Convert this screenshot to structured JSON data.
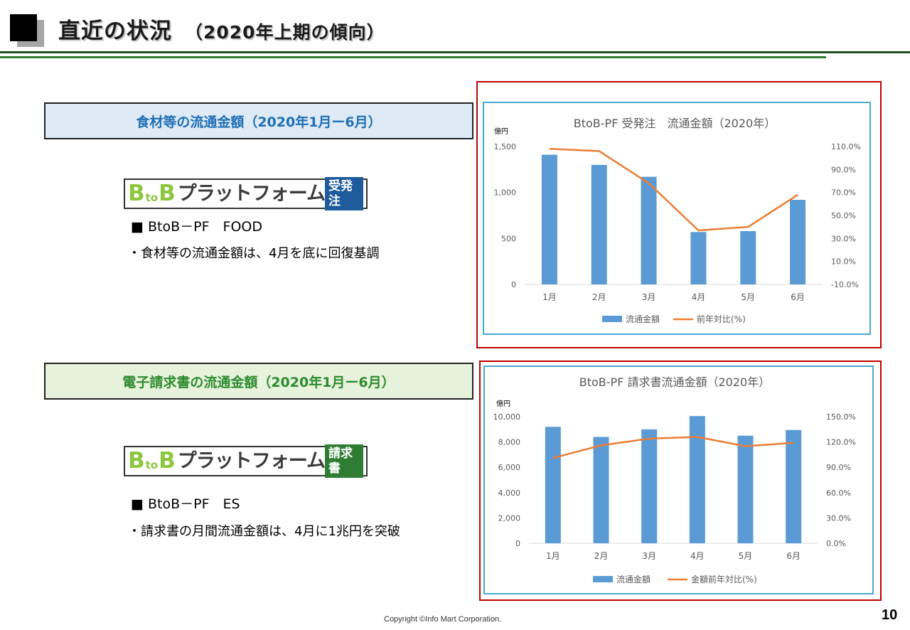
{
  "header": {
    "title": "直近の状況",
    "subtitle": "（2020年上期の傾向）"
  },
  "section1": {
    "heading": "食材等の流通金額（2020年1月ー6月）",
    "logo": {
      "b1": "B",
      "to": "to",
      "b2": "B",
      "text": "プラットフォーム",
      "badge": "受発注"
    },
    "bullet": "■ BtoB－PF　FOOD",
    "note": "・食材等の流通金額は、4月を底に回復基調"
  },
  "section2": {
    "heading": "電子請求書の流通金額（2020年1月ー6月）",
    "logo": {
      "b1": "B",
      "to": "to",
      "b2": "B",
      "text": "プラットフォーム",
      "badge": "請求書"
    },
    "bullet": "■ BtoB－PF　ES",
    "note": "・請求書の月間流通金額は、4月に1兆円を突破"
  },
  "footer": {
    "copyright": "Copyright ©Info Mart Corporation.",
    "page": "10"
  },
  "chart_data": [
    {
      "type": "bar",
      "title": "BtoB-PF 受発注　流通金額（2020年）",
      "ylabel": "億円",
      "categories": [
        "1月",
        "2月",
        "3月",
        "4月",
        "5月",
        "6月"
      ],
      "ylim": [
        0,
        1500
      ],
      "yticks": [
        "0",
        "500",
        "1,000",
        "1,500"
      ],
      "y2lim": [
        -10,
        110
      ],
      "y2ticks": [
        "-10.0%",
        "10.0%",
        "30.0%",
        "50.0%",
        "70.0%",
        "90.0%",
        "110.0%"
      ],
      "series": [
        {
          "name": "流通金額",
          "type": "bar",
          "axis": "left",
          "color": "#5b9bd5",
          "values": [
            1410,
            1300,
            1170,
            570,
            580,
            920
          ]
        },
        {
          "name": "前年対比(%)",
          "type": "line",
          "axis": "right",
          "color": "#ed7d31",
          "values": [
            108,
            106,
            78,
            37,
            40,
            68
          ]
        }
      ],
      "legend": "bottom"
    },
    {
      "type": "bar",
      "title": "BtoB-PF 請求書流通金額（2020年）",
      "ylabel": "億円",
      "categories": [
        "1月",
        "2月",
        "3月",
        "4月",
        "5月",
        "6月"
      ],
      "ylim": [
        0,
        10000
      ],
      "yticks": [
        "0",
        "2,000",
        "4,000",
        "6,000",
        "8,000",
        "10,000"
      ],
      "y2lim": [
        0,
        150
      ],
      "y2ticks": [
        "0.0%",
        "30.0%",
        "60.0%",
        "90.0%",
        "120.0%",
        "150.0%"
      ],
      "series": [
        {
          "name": "流通金額",
          "type": "bar",
          "axis": "left",
          "color": "#5b9bd5",
          "values": [
            9200,
            8400,
            9000,
            10050,
            8500,
            8950
          ]
        },
        {
          "name": "金額前年対比(%)",
          "type": "line",
          "axis": "right",
          "color": "#ed7d31",
          "values": [
            101,
            116,
            124,
            126,
            115,
            119
          ]
        }
      ],
      "legend": "bottom"
    }
  ]
}
